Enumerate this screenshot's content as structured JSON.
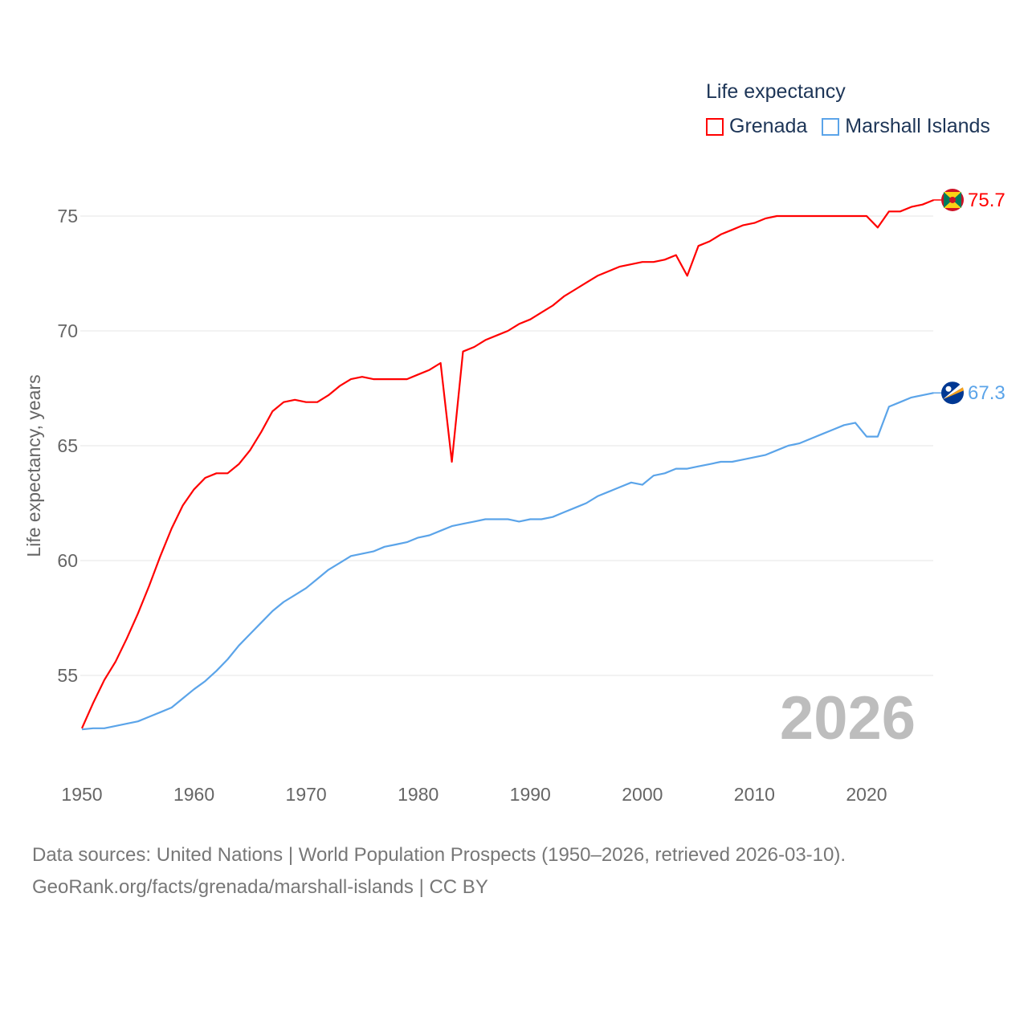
{
  "chart_data": {
    "type": "line",
    "title": "",
    "legend_title": "Life expectancy",
    "legend_placement": "top-right",
    "ylabel": "Life expectancy, years",
    "xlabel": "",
    "xlim": [
      1950,
      2026
    ],
    "ylim": [
      51.5,
      76.5
    ],
    "x_ticks": [
      1950,
      1960,
      1970,
      1980,
      1990,
      2000,
      2010,
      2020
    ],
    "y_ticks": [
      55,
      60,
      65,
      70,
      75
    ],
    "grid": true,
    "year_label": "2026",
    "x": [
      1950,
      1951,
      1952,
      1953,
      1954,
      1955,
      1956,
      1957,
      1958,
      1959,
      1960,
      1961,
      1962,
      1963,
      1964,
      1965,
      1966,
      1967,
      1968,
      1969,
      1970,
      1971,
      1972,
      1973,
      1974,
      1975,
      1976,
      1977,
      1978,
      1979,
      1980,
      1981,
      1982,
      1983,
      1984,
      1985,
      1986,
      1987,
      1988,
      1989,
      1990,
      1991,
      1992,
      1993,
      1994,
      1995,
      1996,
      1997,
      1998,
      1999,
      2000,
      2001,
      2002,
      2003,
      2004,
      2005,
      2006,
      2007,
      2008,
      2009,
      2010,
      2011,
      2012,
      2013,
      2014,
      2015,
      2016,
      2017,
      2018,
      2019,
      2020,
      2021,
      2022,
      2023,
      2024,
      2025,
      2026
    ],
    "series": [
      {
        "name": "Grenada",
        "color": "#ff0000",
        "end_label": "75.7",
        "values": [
          52.7,
          53.8,
          54.8,
          55.6,
          56.6,
          57.7,
          58.9,
          60.2,
          61.4,
          62.4,
          63.1,
          63.6,
          63.8,
          63.8,
          64.2,
          64.8,
          65.6,
          66.5,
          66.9,
          67.0,
          66.9,
          66.9,
          67.2,
          67.6,
          67.9,
          68.0,
          67.9,
          67.9,
          67.9,
          67.9,
          68.1,
          68.3,
          68.6,
          64.3,
          69.1,
          69.3,
          69.6,
          69.8,
          70.0,
          70.3,
          70.5,
          70.8,
          71.1,
          71.5,
          71.8,
          72.1,
          72.4,
          72.6,
          72.8,
          72.9,
          73.0,
          73.0,
          73.1,
          73.3,
          72.4,
          73.7,
          73.9,
          74.2,
          74.4,
          74.6,
          74.7,
          74.9,
          75.0,
          75.0,
          75.0,
          75.0,
          75.0,
          75.0,
          75.0,
          75.0,
          75.0,
          74.5,
          75.2,
          75.2,
          75.4,
          75.5,
          75.7
        ]
      },
      {
        "name": "Marshall Islands",
        "color": "#5ba4e9",
        "end_label": "67.3",
        "values": [
          52.65,
          52.7,
          52.7,
          52.8,
          52.9,
          53.0,
          53.2,
          53.4,
          53.6,
          54.0,
          54.4,
          54.75,
          55.2,
          55.7,
          56.3,
          56.8,
          57.3,
          57.8,
          58.2,
          58.5,
          58.8,
          59.2,
          59.6,
          59.9,
          60.2,
          60.3,
          60.4,
          60.6,
          60.7,
          60.8,
          61.0,
          61.1,
          61.3,
          61.5,
          61.6,
          61.7,
          61.8,
          61.8,
          61.8,
          61.7,
          61.8,
          61.8,
          61.9,
          62.1,
          62.3,
          62.5,
          62.8,
          63.0,
          63.2,
          63.4,
          63.3,
          63.7,
          63.8,
          64.0,
          64.0,
          64.1,
          64.2,
          64.3,
          64.3,
          64.4,
          64.5,
          64.6,
          64.8,
          65.0,
          65.1,
          65.3,
          65.5,
          65.7,
          65.9,
          66.0,
          65.4,
          65.4,
          66.7,
          66.9,
          67.1,
          67.2,
          67.3
        ]
      }
    ]
  },
  "footer": {
    "line1": "Data sources: United Nations | World Population Prospects (1950–2026, retrieved 2026-03-10).",
    "line2": "GeoRank.org/facts/grenada/marshall-islands | CC BY"
  }
}
